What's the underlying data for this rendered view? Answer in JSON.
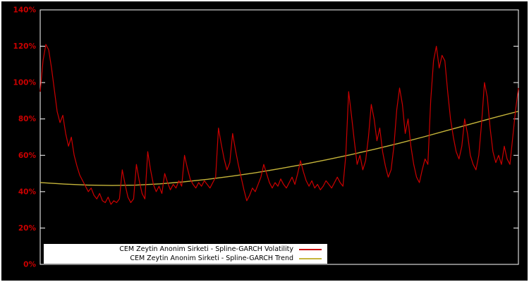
{
  "figure": {
    "background": "#000000",
    "frame_color": "#ffffff"
  },
  "axis": {
    "y_tick_labels": [
      "0%",
      "20%",
      "40%",
      "60%",
      "80%",
      "100%",
      "120%",
      "140%"
    ],
    "y_tick_values": [
      0,
      20,
      40,
      60,
      80,
      100,
      120,
      140
    ],
    "tick_label_color": "#cc0000"
  },
  "legend": {
    "items": [
      {
        "label": "CEM Zeytin Anonim Sirketi - Spline-GARCH Volatility",
        "color": "#cc0000"
      },
      {
        "label": "CEM Zeytin Anonim Sirketi - Spline-GARCH Trend",
        "color": "#c6b53a"
      }
    ]
  },
  "chart_data": {
    "type": "line",
    "title": "",
    "xlabel": "",
    "ylabel": "",
    "ylim": [
      0,
      140
    ],
    "y_unit": "%",
    "grid": false,
    "legend_position": "bottom-left",
    "series": [
      {
        "name": "CEM Zeytin Anonim Sirketi - Spline-GARCH Volatility",
        "color": "#cc0000",
        "values": [
          95,
          112,
          121,
          118,
          108,
          96,
          84,
          78,
          82,
          72,
          65,
          70,
          60,
          54,
          49,
          46,
          43,
          40,
          42,
          38,
          36,
          39,
          35,
          34,
          37,
          33,
          35,
          34,
          36,
          52,
          44,
          37,
          34,
          36,
          55,
          46,
          39,
          36,
          62,
          52,
          44,
          40,
          43,
          39,
          50,
          45,
          41,
          44,
          42,
          46,
          43,
          60,
          53,
          47,
          44,
          42,
          45,
          43,
          46,
          44,
          42,
          45,
          48,
          75,
          66,
          58,
          52,
          56,
          72,
          63,
          55,
          48,
          41,
          35,
          38,
          42,
          40,
          44,
          48,
          55,
          50,
          45,
          42,
          45,
          43,
          47,
          44,
          42,
          45,
          48,
          44,
          50,
          57,
          51,
          46,
          43,
          46,
          42,
          44,
          41,
          43,
          46,
          44,
          42,
          45,
          48,
          45,
          43,
          60,
          95,
          82,
          68,
          55,
          60,
          52,
          57,
          70,
          88,
          80,
          68,
          75,
          62,
          54,
          48,
          52,
          65,
          85,
          97,
          88,
          72,
          80,
          65,
          55,
          48,
          45,
          52,
          58,
          55,
          90,
          112,
          120,
          108,
          115,
          112,
          95,
          80,
          70,
          62,
          58,
          65,
          80,
          72,
          60,
          55,
          52,
          60,
          78,
          100,
          92,
          75,
          62,
          56,
          60,
          55,
          65,
          58,
          55,
          70,
          85,
          97
        ]
      },
      {
        "name": "CEM Zeytin Anonim Sirketi - Spline-GARCH Trend",
        "color": "#c6b53a",
        "x": [
          0,
          0.05,
          0.1,
          0.15,
          0.2,
          0.25,
          0.3,
          0.35,
          0.4,
          0.45,
          0.5,
          0.55,
          0.6,
          0.65,
          0.7,
          0.75,
          0.8,
          0.85,
          0.9,
          0.95,
          1.0
        ],
        "values": [
          45,
          44.2,
          43.6,
          43.4,
          43.6,
          44.3,
          45.4,
          46.8,
          48.5,
          50.4,
          52.6,
          55,
          57.6,
          60.4,
          63.4,
          66.6,
          70,
          73.6,
          77.2,
          80.8,
          84.2
        ]
      }
    ]
  }
}
